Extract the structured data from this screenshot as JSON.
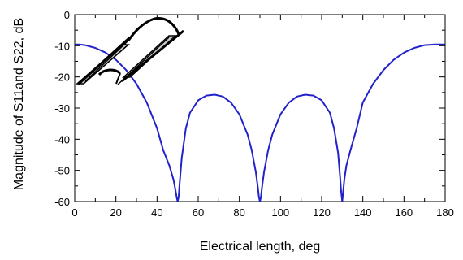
{
  "chart_data": {
    "type": "line",
    "title": "",
    "xlabel": "Electrical length, deg",
    "ylabel": "Magnitude of S11and S22, dB",
    "xlim": [
      0,
      180
    ],
    "ylim": [
      -60,
      0
    ],
    "x_ticks": [
      0,
      20,
      40,
      60,
      80,
      100,
      120,
      140,
      160,
      180
    ],
    "y_ticks": [
      0,
      -10,
      -20,
      -30,
      -40,
      -50,
      -60
    ],
    "grid": false,
    "legend": "none",
    "series": [
      {
        "color": "#2222cc",
        "x": [
          0,
          2,
          5,
          10,
          15,
          20,
          25,
          30,
          35,
          40,
          43,
          46,
          48,
          49,
          49.5,
          50,
          50.5,
          51,
          52,
          54,
          56,
          60,
          64,
          68,
          72,
          76,
          80,
          84,
          86,
          88,
          89,
          89.5,
          90,
          90.5,
          91,
          92,
          94,
          96,
          100,
          104,
          108,
          112,
          116,
          120,
          124,
          126,
          128,
          129,
          129.5,
          130,
          130.5,
          131,
          132,
          134,
          137,
          140,
          145,
          150,
          155,
          160,
          165,
          170,
          175,
          178,
          180
        ],
        "y": [
          -9.6,
          -9.6,
          -9.8,
          -10.7,
          -12.2,
          -14.5,
          -17.8,
          -22.2,
          -28.2,
          -36.5,
          -43.5,
          -48.5,
          -53.0,
          -56.5,
          -58.5,
          -60.0,
          -58.5,
          -54.0,
          -46.0,
          -36.5,
          -31.5,
          -27.5,
          -26.0,
          -25.7,
          -26.3,
          -28.3,
          -32.0,
          -38.5,
          -43.5,
          -50.5,
          -55.5,
          -58.5,
          -60.0,
          -58.5,
          -55.5,
          -50.5,
          -43.5,
          -38.5,
          -32.0,
          -28.3,
          -26.3,
          -25.7,
          -26.0,
          -27.5,
          -31.5,
          -36.5,
          -44.5,
          -52.5,
          -57.0,
          -60.0,
          -56.5,
          -53.0,
          -48.5,
          -43.5,
          -36.5,
          -28.2,
          -22.2,
          -17.8,
          -14.5,
          -12.2,
          -10.7,
          -9.8,
          -9.6,
          -9.6,
          -9.6
        ]
      }
    ]
  },
  "inset": {
    "icon": "coupled-transmission-lines-icon"
  }
}
